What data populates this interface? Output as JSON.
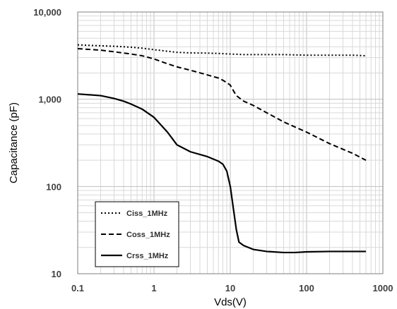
{
  "chart_data": {
    "type": "line",
    "title": "",
    "xlabel": "Vds(V)",
    "ylabel": "Capacitance (pF)",
    "x_scale": "log",
    "y_scale": "log",
    "xlim": [
      0.1,
      1000
    ],
    "ylim": [
      10,
      10000
    ],
    "x_ticks": [
      0.1,
      1,
      10,
      100,
      1000
    ],
    "x_tick_labels": [
      "0.1",
      "1",
      "10",
      "100",
      "1000"
    ],
    "y_ticks": [
      10,
      100,
      1000,
      10000
    ],
    "y_tick_labels": [
      "10",
      "100",
      "1,000",
      "10,000"
    ],
    "grid": true,
    "legend_position": "bottom-left",
    "series": [
      {
        "name": "Ciss_1MHz",
        "style": "dotted",
        "x": [
          0.1,
          0.2,
          0.3,
          0.5,
          0.7,
          1,
          1.5,
          2,
          3,
          5,
          7,
          10,
          15,
          20,
          50,
          100,
          200,
          400,
          600
        ],
        "y": [
          4200,
          4100,
          4050,
          3950,
          3850,
          3700,
          3550,
          3450,
          3400,
          3380,
          3350,
          3300,
          3250,
          3250,
          3250,
          3200,
          3200,
          3200,
          3150
        ]
      },
      {
        "name": "Coss_1MHz",
        "style": "dashed",
        "x": [
          0.1,
          0.2,
          0.3,
          0.5,
          0.7,
          1,
          1.5,
          2,
          3,
          5,
          7,
          8,
          9,
          10,
          11,
          12,
          15,
          20,
          30,
          50,
          100,
          200,
          400,
          600
        ],
        "y": [
          3800,
          3650,
          3500,
          3300,
          3150,
          2900,
          2550,
          2350,
          2150,
          1900,
          1750,
          1650,
          1550,
          1450,
          1250,
          1100,
          950,
          850,
          700,
          550,
          420,
          310,
          240,
          200
        ]
      },
      {
        "name": "Crss_1MHz",
        "style": "solid",
        "x": [
          0.1,
          0.2,
          0.3,
          0.4,
          0.5,
          0.7,
          1,
          1.5,
          2,
          3,
          5,
          7,
          8,
          9,
          10,
          11,
          12,
          13,
          15,
          20,
          30,
          50,
          70,
          100,
          200,
          400,
          600
        ],
        "y": [
          1150,
          1100,
          1020,
          950,
          880,
          770,
          620,
          420,
          300,
          250,
          220,
          195,
          180,
          150,
          100,
          55,
          32,
          23,
          21,
          19,
          18,
          17.5,
          17.5,
          17.8,
          18,
          18,
          18
        ]
      }
    ]
  }
}
